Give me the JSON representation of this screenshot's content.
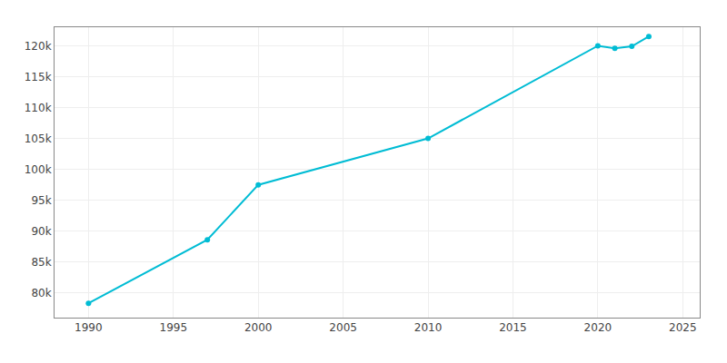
{
  "chart_data": {
    "type": "line",
    "x": [
      1990,
      1997,
      2000,
      2010,
      2020,
      2021,
      2022,
      2023
    ],
    "values": [
      78331,
      88600,
      97492,
      105000,
      120000,
      119600,
      119900,
      121500
    ],
    "color": "#00BCD4",
    "marker": "circle",
    "xlim": [
      1988,
      2026
    ],
    "ylim": [
      76000,
      123000
    ],
    "xticks": [
      1990,
      1995,
      2000,
      2005,
      2010,
      2015,
      2020,
      2025
    ],
    "yticks": [
      {
        "value": 80000,
        "label": "80k"
      },
      {
        "value": 85000,
        "label": "85k"
      },
      {
        "value": 90000,
        "label": "90k"
      },
      {
        "value": 95000,
        "label": "95k"
      },
      {
        "value": 100000,
        "label": "100k"
      },
      {
        "value": 105000,
        "label": "105k"
      },
      {
        "value": 110000,
        "label": "110k"
      },
      {
        "value": 115000,
        "label": "115k"
      },
      {
        "value": 120000,
        "label": "120k"
      }
    ],
    "grid": true
  }
}
